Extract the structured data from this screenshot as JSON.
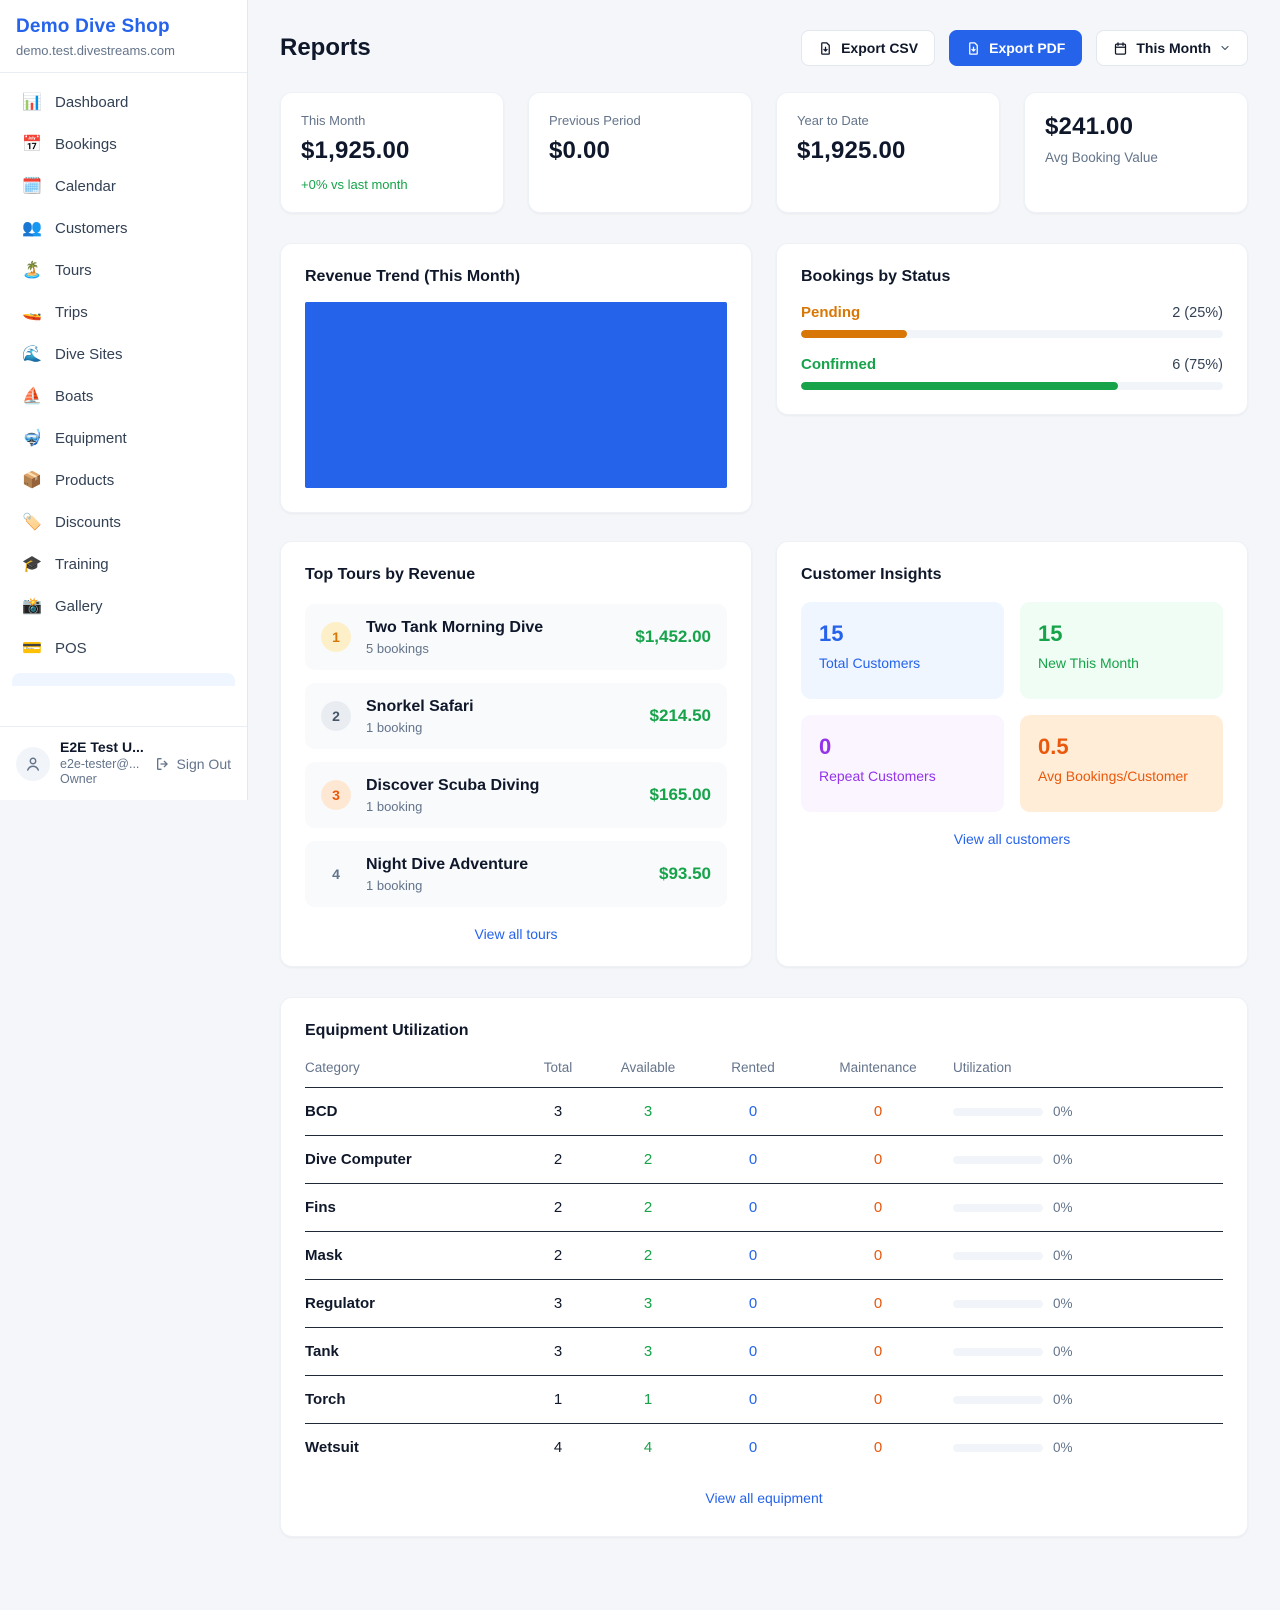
{
  "colors": {
    "accent_blue": "#2563eb",
    "green": "#16a34a",
    "pending_orange": "#d97706",
    "maintenance_orange": "#ea580c",
    "purple": "#9333ea"
  },
  "sidebar": {
    "brand": {
      "name": "Demo Dive Shop",
      "domain": "demo.test.divestreams.com"
    },
    "nav": [
      {
        "label": "Dashboard",
        "icon": "📊"
      },
      {
        "label": "Bookings",
        "icon": "📅"
      },
      {
        "label": "Calendar",
        "icon": "🗓️"
      },
      {
        "label": "Customers",
        "icon": "👥"
      },
      {
        "label": "Tours",
        "icon": "🏝️"
      },
      {
        "label": "Trips",
        "icon": "🚤"
      },
      {
        "label": "Dive Sites",
        "icon": "🌊"
      },
      {
        "label": "Boats",
        "icon": "⛵"
      },
      {
        "label": "Equipment",
        "icon": "🤿"
      },
      {
        "label": "Products",
        "icon": "📦"
      },
      {
        "label": "Discounts",
        "icon": "🏷️"
      },
      {
        "label": "Training",
        "icon": "🎓"
      },
      {
        "label": "Gallery",
        "icon": "📸"
      },
      {
        "label": "POS",
        "icon": "💳"
      }
    ],
    "user": {
      "name": "E2E Test U...",
      "email": "e2e-tester@...",
      "role": "Owner",
      "sign_out": "Sign Out"
    }
  },
  "header": {
    "title": "Reports",
    "export_csv": "Export CSV",
    "export_pdf": "Export PDF",
    "period": "This Month"
  },
  "stats": [
    {
      "label": "This Month",
      "value": "$1,925.00",
      "delta": "+0% vs last month"
    },
    {
      "label": "Previous Period",
      "value": "$0.00"
    },
    {
      "label": "Year to Date",
      "value": "$1,925.00"
    },
    {
      "label": "Avg Booking Value",
      "value": "$241.00"
    }
  ],
  "revenue_trend": {
    "title": "Revenue Trend (This Month)"
  },
  "chart_data": {
    "type": "area",
    "title": "Revenue Trend (This Month)",
    "fill_color": "#2563eb",
    "note": "Chart renders as a solid filled blue block; no axes, ticks, gridlines or data labels are visible in the screenshot"
  },
  "bookings_by_status": {
    "title": "Bookings by Status",
    "items": [
      {
        "label": "Pending",
        "value": "2 (25%)",
        "pct": 25
      },
      {
        "label": "Confirmed",
        "value": "6 (75%)",
        "pct": 75
      }
    ]
  },
  "top_tours": {
    "title": "Top Tours by Revenue",
    "items": [
      {
        "rank": "1",
        "name": "Two Tank Morning Dive",
        "bookings": "5 bookings",
        "revenue": "$1,452.00"
      },
      {
        "rank": "2",
        "name": "Snorkel Safari",
        "bookings": "1 booking",
        "revenue": "$214.50"
      },
      {
        "rank": "3",
        "name": "Discover Scuba Diving",
        "bookings": "1 booking",
        "revenue": "$165.00"
      },
      {
        "rank": "4",
        "name": "Night Dive Adventure",
        "bookings": "1 booking",
        "revenue": "$93.50"
      }
    ],
    "view_all": "View all tours"
  },
  "customer_insights": {
    "title": "Customer Insights",
    "tiles": [
      {
        "value": "15",
        "label": "Total Customers"
      },
      {
        "value": "15",
        "label": "New This Month"
      },
      {
        "value": "0",
        "label": "Repeat Customers"
      },
      {
        "value": "0.5",
        "label": "Avg Bookings/Customer"
      }
    ],
    "view_all": "View all customers"
  },
  "equipment": {
    "title": "Equipment Utilization",
    "columns": [
      "Category",
      "Total",
      "Available",
      "Rented",
      "Maintenance",
      "Utilization"
    ],
    "rows": [
      {
        "category": "BCD",
        "total": "3",
        "available": "3",
        "rented": "0",
        "maintenance": "0",
        "utilization": "0%"
      },
      {
        "category": "Dive Computer",
        "total": "2",
        "available": "2",
        "rented": "0",
        "maintenance": "0",
        "utilization": "0%"
      },
      {
        "category": "Fins",
        "total": "2",
        "available": "2",
        "rented": "0",
        "maintenance": "0",
        "utilization": "0%"
      },
      {
        "category": "Mask",
        "total": "2",
        "available": "2",
        "rented": "0",
        "maintenance": "0",
        "utilization": "0%"
      },
      {
        "category": "Regulator",
        "total": "3",
        "available": "3",
        "rented": "0",
        "maintenance": "0",
        "utilization": "0%"
      },
      {
        "category": "Tank",
        "total": "3",
        "available": "3",
        "rented": "0",
        "maintenance": "0",
        "utilization": "0%"
      },
      {
        "category": "Torch",
        "total": "1",
        "available": "1",
        "rented": "0",
        "maintenance": "0",
        "utilization": "0%"
      },
      {
        "category": "Wetsuit",
        "total": "4",
        "available": "4",
        "rented": "0",
        "maintenance": "0",
        "utilization": "0%"
      }
    ],
    "view_all": "View all equipment"
  }
}
